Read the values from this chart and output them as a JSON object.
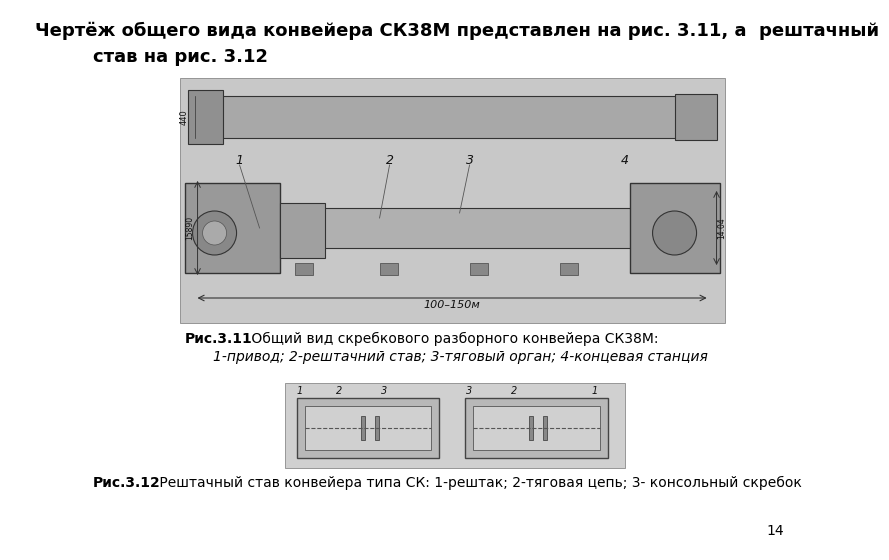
{
  "title_line1": "    Чертёж общего вида конвейера СК38М представлен на рис. 3.11, а  рештачный",
  "title_line2": "став на рис. 3.12",
  "caption1_bold": "Рис.3.11",
  "caption1_normal": " Общий вид скребкового разборного конвейера СК38М:",
  "caption1_line2": "1-привод; 2-рештачний став; 3-тяговый орган; 4-концевая станция",
  "caption2_bold": "Рис.3.12",
  "caption2_normal": " Рештачный став конвейера типа СК: 1-рештак; 2-тяговая цепь; 3- консольный скребок",
  "page_number": "14",
  "bg_color": "#ffffff",
  "text_color": "#000000",
  "title_fontsize": 13,
  "caption_fontsize": 10,
  "page_num_fontsize": 10,
  "img1_bg": "#c8c8c8",
  "img2_bg": "#d0d0d0"
}
